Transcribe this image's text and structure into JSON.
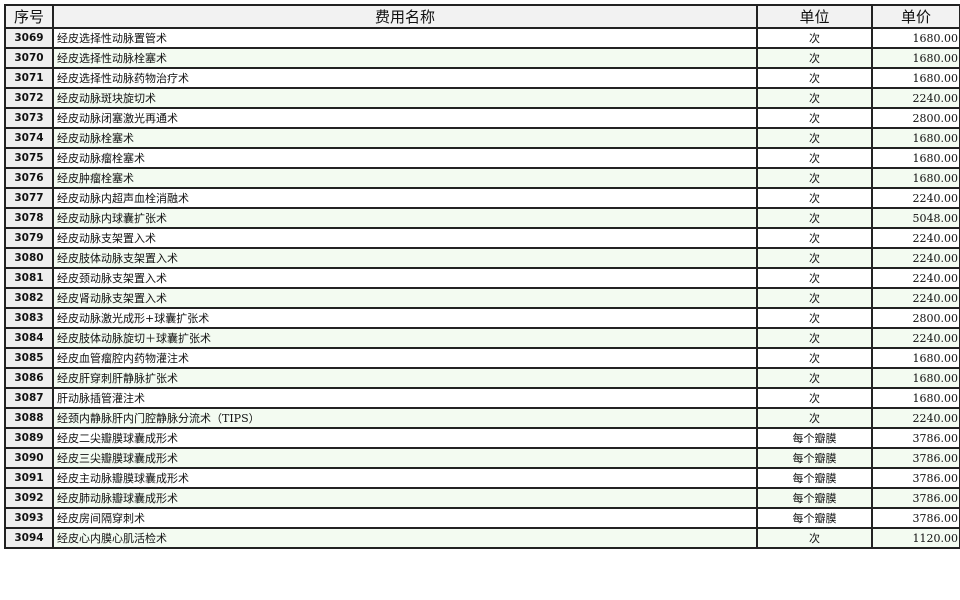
{
  "header": {
    "no": "序号",
    "name": "费用名称",
    "unit": "单位",
    "price": "单价"
  },
  "rows": [
    {
      "no": "3069",
      "name": "经皮选择性动脉置管术",
      "unit": "次",
      "price": "1680.00"
    },
    {
      "no": "3070",
      "name": "经皮选择性动脉栓塞术",
      "unit": "次",
      "price": "1680.00"
    },
    {
      "no": "3071",
      "name": "经皮选择性动脉药物治疗术",
      "unit": "次",
      "price": "1680.00"
    },
    {
      "no": "3072",
      "name": "经皮动脉斑块旋切术",
      "unit": "次",
      "price": "2240.00"
    },
    {
      "no": "3073",
      "name": "经皮动脉闭塞激光再通术",
      "unit": "次",
      "price": "2800.00"
    },
    {
      "no": "3074",
      "name": "经皮动脉栓塞术",
      "unit": "次",
      "price": "1680.00"
    },
    {
      "no": "3075",
      "name": "经皮动脉瘤栓塞术",
      "unit": "次",
      "price": "1680.00"
    },
    {
      "no": "3076",
      "name": "经皮肿瘤栓塞术",
      "unit": "次",
      "price": "1680.00"
    },
    {
      "no": "3077",
      "name": "经皮动脉内超声血栓消融术",
      "unit": "次",
      "price": "2240.00"
    },
    {
      "no": "3078",
      "name": "经皮动脉内球囊扩张术",
      "unit": "次",
      "price": "5048.00"
    },
    {
      "no": "3079",
      "name": "经皮动脉支架置入术",
      "unit": "次",
      "price": "2240.00"
    },
    {
      "no": "3080",
      "name": "经皮肢体动脉支架置入术",
      "unit": "次",
      "price": "2240.00"
    },
    {
      "no": "3081",
      "name": "经皮颈动脉支架置入术",
      "unit": "次",
      "price": "2240.00"
    },
    {
      "no": "3082",
      "name": "经皮肾动脉支架置入术",
      "unit": "次",
      "price": "2240.00"
    },
    {
      "no": "3083",
      "name": "经皮动脉激光成形+球囊扩张术",
      "unit": "次",
      "price": "2800.00"
    },
    {
      "no": "3084",
      "name": "经皮肢体动脉旋切＋球囊扩张术",
      "unit": "次",
      "price": "2240.00"
    },
    {
      "no": "3085",
      "name": "经皮血管瘤腔内药物灌注术",
      "unit": "次",
      "price": "1680.00"
    },
    {
      "no": "3086",
      "name": "经皮肝穿刺肝静脉扩张术",
      "unit": "次",
      "price": "1680.00"
    },
    {
      "no": "3087",
      "name": "肝动脉插管灌注术",
      "unit": "次",
      "price": "1680.00"
    },
    {
      "no": "3088",
      "name": "经颈内静脉肝内门腔静脉分流术（TIPS）",
      "unit": "次",
      "price": "2240.00"
    },
    {
      "no": "3089",
      "name": "经皮二尖瓣膜球囊成形术",
      "unit": "每个瓣膜",
      "price": "3786.00"
    },
    {
      "no": "3090",
      "name": "经皮三尖瓣膜球囊成形术",
      "unit": "每个瓣膜",
      "price": "3786.00"
    },
    {
      "no": "3091",
      "name": "经皮主动脉瓣膜球囊成形术",
      "unit": "每个瓣膜",
      "price": "3786.00"
    },
    {
      "no": "3092",
      "name": "经皮肺动脉瓣球囊成形术",
      "unit": "每个瓣膜",
      "price": "3786.00"
    },
    {
      "no": "3093",
      "name": "经皮房间隔穿刺术",
      "unit": "每个瓣膜",
      "price": "3786.00"
    },
    {
      "no": "3094",
      "name": "经皮心内膜心肌活检术",
      "unit": "次",
      "price": "1120.00"
    }
  ]
}
